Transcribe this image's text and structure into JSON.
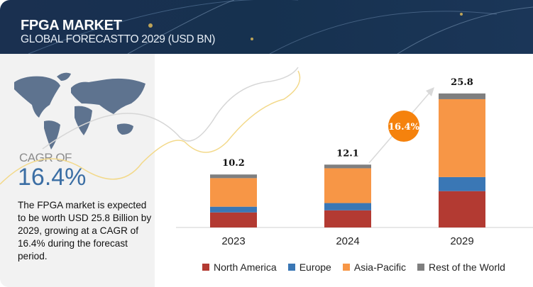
{
  "header": {
    "title": "FPGA MARKET",
    "subtitle": "GLOBAL FORECASTTO 2029 (USD BN)"
  },
  "sidebar": {
    "cagr_label": "CAGR OF",
    "cagr_value": "16.4%",
    "description": "The FPGA market is expected to be worth USD 25.8 Billion by 2029, growing at a CAGR of 16.4% during the forecast period."
  },
  "chart_data": {
    "type": "bar",
    "stacked": true,
    "title": "FPGA Market, Global Forecast to 2029 (USD BN)",
    "categories": [
      "2023",
      "2024",
      "2029"
    ],
    "totals": [
      "10.2",
      "12.1",
      "25.8"
    ],
    "series": [
      {
        "name": "North America",
        "color": "#b33a32",
        "values": [
          2.9,
          3.3,
          7.0
        ]
      },
      {
        "name": "Europe",
        "color": "#3a77b5",
        "values": [
          1.1,
          1.4,
          2.7
        ]
      },
      {
        "name": "Asia-Pacific",
        "color": "#f79646",
        "values": [
          5.5,
          6.7,
          15.0
        ]
      },
      {
        "name": "Rest of the World",
        "color": "#7f7f7f",
        "values": [
          0.7,
          0.7,
          1.1
        ]
      }
    ],
    "annotation": "16.4%",
    "legend": "bottom",
    "ylim": [
      0,
      26
    ]
  }
}
